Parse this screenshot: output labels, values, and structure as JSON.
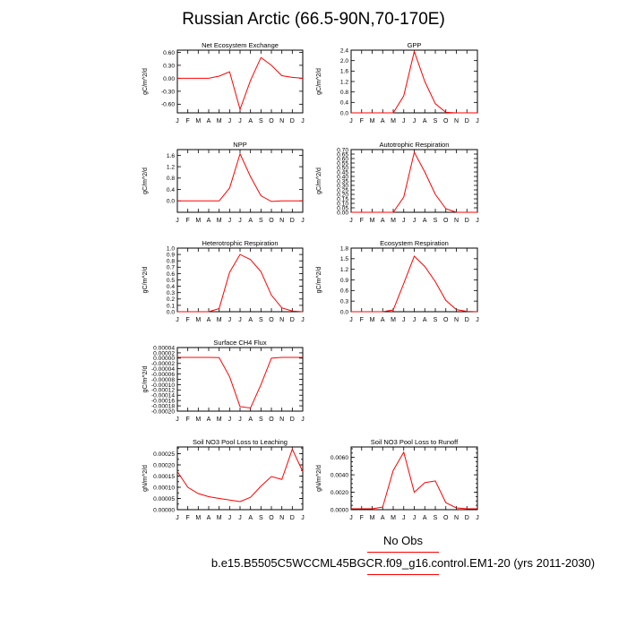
{
  "title": "Russian Arctic (66.5-90N,70-170E)",
  "legend": {
    "obs_label": "No Obs",
    "run_label": "b.e15.B5505C5WCCML45BGCR.f09_g16.control.EM1-20 (yrs 2011-2030)"
  },
  "colors": {
    "series": "#ff0000",
    "axis": "#000000"
  },
  "months": [
    "J",
    "F",
    "M",
    "A",
    "M",
    "J",
    "J",
    "A",
    "S",
    "O",
    "N",
    "D",
    "J"
  ],
  "chart_data": [
    {
      "type": "line",
      "title": "Net Ecosystem Exchange",
      "ylabel": "gC/m^2/d",
      "ylim": [
        -0.8,
        0.65
      ],
      "yticks": [
        -0.6,
        -0.3,
        0.0,
        0.3,
        0.6
      ],
      "ytick_labels": [
        "-0.60",
        "-0.30",
        "0.00",
        "0.30",
        "0.60"
      ],
      "values": [
        0.0,
        0.0,
        0.0,
        0.0,
        0.05,
        0.15,
        -0.72,
        -0.05,
        0.48,
        0.3,
        0.06,
        0.02,
        0.0
      ]
    },
    {
      "type": "line",
      "title": "GPP",
      "ylabel": "gC/m^2/d",
      "ylim": [
        0.0,
        2.4
      ],
      "yticks": [
        0.0,
        0.4,
        0.8,
        1.2,
        1.6,
        2.0,
        2.4
      ],
      "ytick_labels": [
        "0.0",
        "0.4",
        "0.8",
        "1.2",
        "1.6",
        "2.0",
        "2.4"
      ],
      "values": [
        0.0,
        0.0,
        0.0,
        0.0,
        0.0,
        0.65,
        2.35,
        1.2,
        0.35,
        0.02,
        0.0,
        0.0,
        0.0
      ]
    },
    {
      "type": "line",
      "title": "NPP",
      "ylabel": "gC/m^2/d",
      "ylim": [
        -0.4,
        1.8
      ],
      "yticks": [
        0.0,
        0.4,
        0.8,
        1.2,
        1.6
      ],
      "ytick_labels": [
        "0.0",
        "0.4",
        "0.8",
        "1.2",
        "1.6"
      ],
      "values": [
        0.0,
        0.0,
        0.0,
        0.0,
        0.0,
        0.45,
        1.65,
        0.85,
        0.18,
        -0.02,
        0.0,
        0.0,
        0.0
      ]
    },
    {
      "type": "line",
      "title": "Autotrophic Respiration",
      "ylabel": "gC/m^2/d",
      "ylim": [
        0.0,
        0.7
      ],
      "yticks": [
        0.0,
        0.05,
        0.1,
        0.15,
        0.2,
        0.25,
        0.3,
        0.35,
        0.4,
        0.45,
        0.5,
        0.55,
        0.6,
        0.65,
        0.7
      ],
      "ytick_labels": [
        "0.00",
        "0.05",
        "0.10",
        "0.15",
        "0.20",
        "0.25",
        "0.30",
        "0.35",
        "0.40",
        "0.45",
        "0.50",
        "0.55",
        "0.60",
        "0.65",
        "0.70"
      ],
      "values": [
        0.0,
        0.0,
        0.0,
        0.0,
        0.0,
        0.17,
        0.67,
        0.45,
        0.2,
        0.04,
        0.0,
        0.0,
        0.0
      ]
    },
    {
      "type": "line",
      "title": "Heterotrophic Respiration",
      "ylabel": "gC/m^2/d",
      "ylim": [
        0.0,
        1.0
      ],
      "yticks": [
        0.0,
        0.1,
        0.2,
        0.3,
        0.4,
        0.5,
        0.6,
        0.7,
        0.8,
        0.9,
        1.0
      ],
      "ytick_labels": [
        "0.0",
        "0.1",
        "0.2",
        "0.3",
        "0.4",
        "0.5",
        "0.6",
        "0.7",
        "0.8",
        "0.9",
        "1.0"
      ],
      "values": [
        0.0,
        0.0,
        0.0,
        0.0,
        0.05,
        0.62,
        0.9,
        0.82,
        0.63,
        0.26,
        0.06,
        0.01,
        0.0
      ]
    },
    {
      "type": "line",
      "title": "Ecosystem Respiration",
      "ylabel": "gC/m^2/d",
      "ylim": [
        0.0,
        1.8
      ],
      "yticks": [
        0.0,
        0.3,
        0.6,
        0.9,
        1.2,
        1.5,
        1.8
      ],
      "ytick_labels": [
        "0.0",
        "0.3",
        "0.6",
        "0.9",
        "1.2",
        "1.5",
        "1.8"
      ],
      "values": [
        0.0,
        0.0,
        0.0,
        0.0,
        0.05,
        0.8,
        1.57,
        1.28,
        0.85,
        0.32,
        0.06,
        0.01,
        0.0
      ]
    },
    {
      "type": "line",
      "title": "Surface CH4 Flux",
      "ylabel": "gC/m^2/d",
      "ylim": [
        -0.0002,
        4e-05
      ],
      "yticks": [
        -0.0002,
        -0.00018,
        -0.00016,
        -0.00014,
        -0.00012,
        -0.0001,
        -8e-05,
        -6e-05,
        -4e-05,
        -2e-05,
        0.0,
        2e-05,
        4e-05
      ],
      "ytick_labels": [
        "-0.00020",
        "-0.00018",
        "-0.00016",
        "-0.00014",
        "-0.00012",
        "-0.00010",
        "-0.00008",
        "-0.00006",
        "-0.00004",
        "-0.00002",
        "0.00000",
        "0.00002",
        "0.00004"
      ],
      "values": [
        3e-06,
        3e-06,
        3e-06,
        3e-06,
        2e-06,
        -7e-05,
        -0.000183,
        -0.000188,
        -0.0001,
        0.0,
        3e-06,
        3e-06,
        3e-06
      ]
    },
    {
      "type": "line",
      "title": "Soil NO3 Pool Loss to Leaching",
      "ylabel": "gN/m^2/d",
      "ylim": [
        0.0,
        0.00028
      ],
      "yticks": [
        0.0,
        5e-05,
        0.0001,
        0.00015,
        0.0002,
        0.00025
      ],
      "ytick_labels": [
        "0.00000",
        "0.00005",
        "0.00010",
        "0.00015",
        "0.00020",
        "0.00025"
      ],
      "minor_step": 2.5e-05,
      "values": [
        0.00017,
        0.0001,
        7.2e-05,
        5.8e-05,
        5e-05,
        4.3e-05,
        3.6e-05,
        5.5e-05,
        0.000105,
        0.000148,
        0.000135,
        0.00027,
        0.00017
      ]
    },
    {
      "type": "line",
      "title": "Soil NO3 Pool Loss to Runoff",
      "ylabel": "gN/m^2/d",
      "ylim": [
        0.0,
        0.0072
      ],
      "yticks": [
        0.0,
        0.002,
        0.004,
        0.006
      ],
      "ytick_labels": [
        "0.0000",
        "0.0020",
        "0.0040",
        "0.0060"
      ],
      "minor_step": 0.0005,
      "values": [
        0.0001,
        0.0001,
        0.0001,
        0.0003,
        0.0045,
        0.0066,
        0.002,
        0.0031,
        0.0033,
        0.0008,
        0.0002,
        0.0001,
        0.0001
      ]
    }
  ]
}
